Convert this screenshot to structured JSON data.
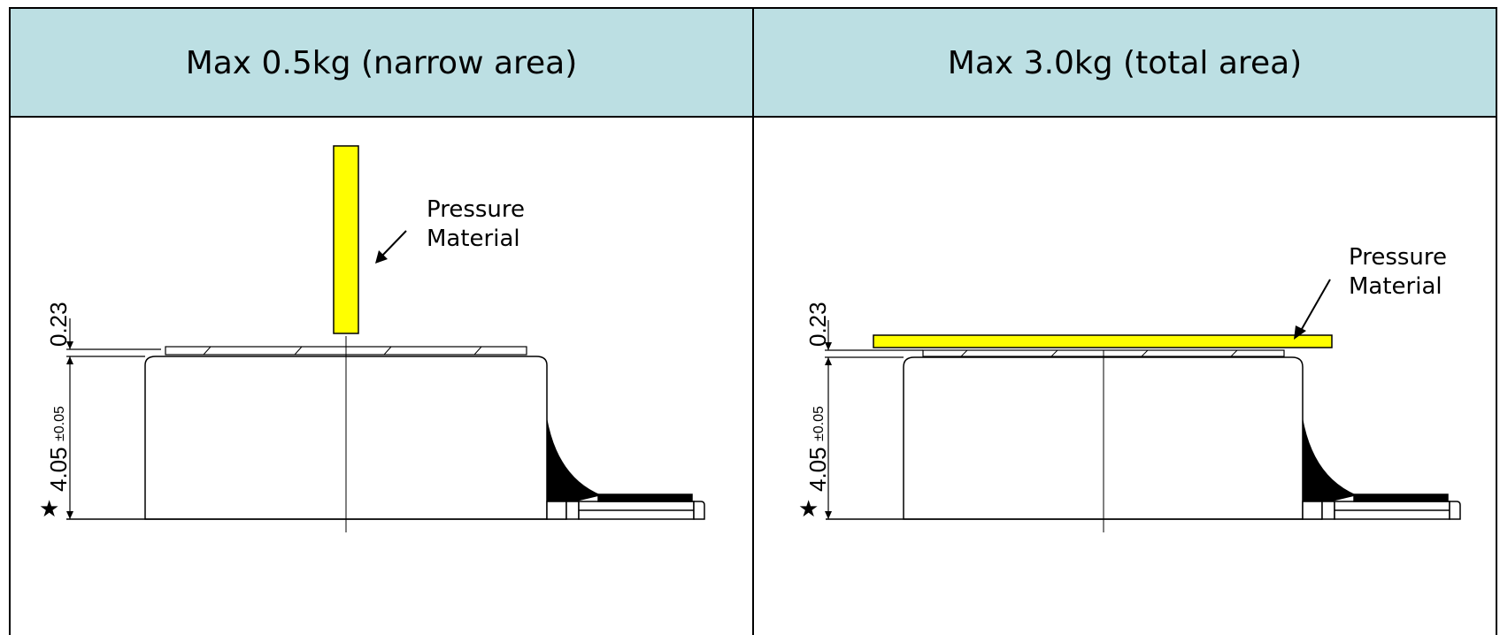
{
  "panels": [
    {
      "header": "Max 0.5kg (narrow area)",
      "label_line1": "Pressure",
      "label_line2": "Material",
      "dim_top": "0.23",
      "dim_height": "4.05",
      "dim_tolerance": "±0.05",
      "mark": "★"
    },
    {
      "header": "Max 3.0kg (total area)",
      "label_line1": "Pressure",
      "label_line2": "Material",
      "dim_top": "0.23",
      "dim_height": "4.05",
      "dim_tolerance": "±0.05",
      "mark": "★"
    }
  ],
  "colors": {
    "header_bg": "#bcdfe3",
    "pressure_material": "#ffff00",
    "border": "#000000"
  }
}
